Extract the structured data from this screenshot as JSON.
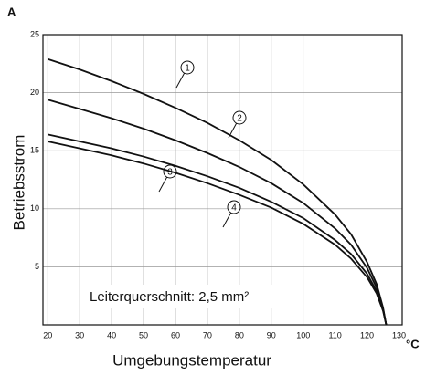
{
  "chart_data": {
    "type": "line",
    "y_unit": "A",
    "x_unit": "°C",
    "ylabel": "Betriebsstrom",
    "xlabel": "Umgebungstemperatur",
    "annotation": "Leiterquerschnitt: 2,5 mm²",
    "x": [
      20,
      30,
      40,
      50,
      60,
      70,
      80,
      90,
      100,
      110,
      115,
      120,
      123,
      125,
      126
    ],
    "series": [
      {
        "name": "1",
        "color": "#111111",
        "values": [
          22.9,
          22.0,
          21.0,
          19.9,
          18.7,
          17.4,
          15.9,
          14.2,
          12.1,
          9.5,
          7.8,
          5.4,
          3.5,
          1.5,
          0
        ]
      },
      {
        "name": "2",
        "color": "#111111",
        "values": [
          19.4,
          18.6,
          17.8,
          16.9,
          15.9,
          14.8,
          13.6,
          12.2,
          10.5,
          8.3,
          6.9,
          4.9,
          3.2,
          1.4,
          0
        ]
      },
      {
        "name": "3",
        "color": "#111111",
        "values": [
          16.4,
          15.8,
          15.2,
          14.5,
          13.7,
          12.8,
          11.8,
          10.6,
          9.2,
          7.3,
          6.1,
          4.4,
          2.9,
          1.3,
          0
        ]
      },
      {
        "name": "4",
        "color": "#111111",
        "values": [
          15.8,
          15.2,
          14.6,
          13.9,
          13.1,
          12.2,
          11.2,
          10.1,
          8.7,
          6.9,
          5.7,
          4.1,
          2.7,
          1.2,
          0
        ]
      }
    ],
    "xlim": [
      18.5,
      131
    ],
    "xticks": [
      20,
      30,
      40,
      50,
      60,
      70,
      80,
      90,
      100,
      110,
      120,
      130
    ],
    "ylim": [
      0,
      25
    ],
    "yticks": [
      5,
      10,
      15,
      20,
      25
    ],
    "grid": true
  }
}
